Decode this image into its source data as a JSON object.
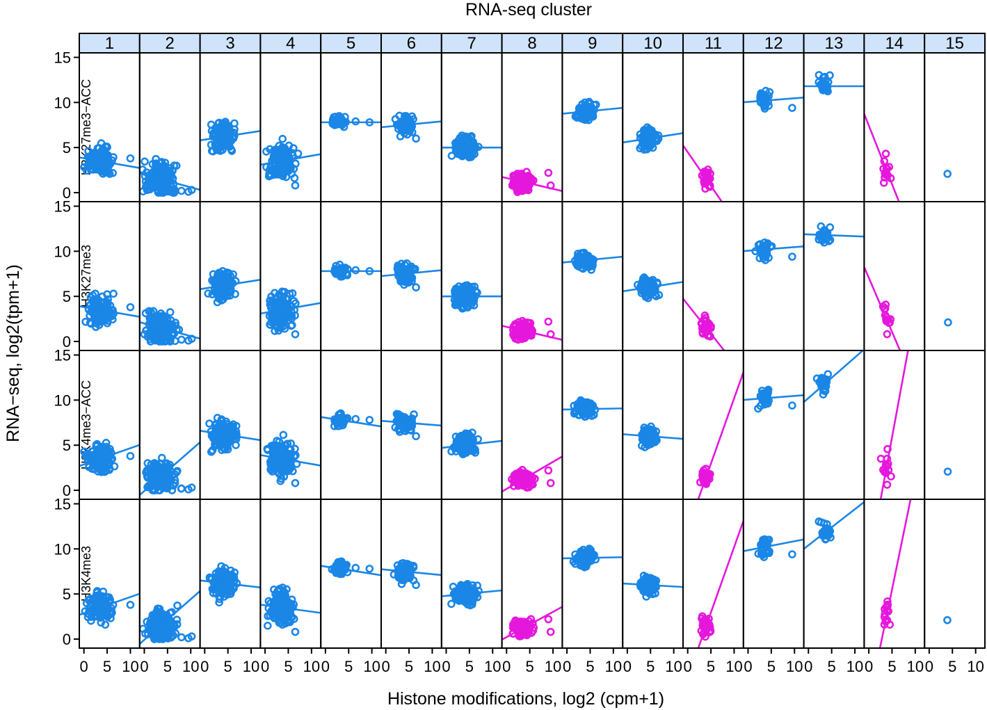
{
  "chart_data": {
    "type": "scatter",
    "title": "RNA-seq cluster",
    "xlabel": "Histone modifications, log2 (cpm+1)",
    "ylabel": "RNA−seq, log2(tpm+1)",
    "xlim": [
      -1,
      12
    ],
    "ylim": [
      -1,
      15.5
    ],
    "x_ticks": [
      "0",
      "5",
      "10"
    ],
    "y_ticks": [
      "0",
      "5",
      "10",
      "15"
    ],
    "columns": [
      "1",
      "2",
      "3",
      "4",
      "5",
      "6",
      "7",
      "8",
      "9",
      "10",
      "11",
      "12",
      "13",
      "14",
      "15"
    ],
    "rows": [
      "H3K27me3−ACC",
      "H3K27me3",
      "H3K4me3−ACC",
      "H3K4me3"
    ],
    "colors": {
      "blue": "#1a86e6",
      "magenta": "#e617dd",
      "strip": "#cfe3fb"
    },
    "column_colors": [
      "blue",
      "blue",
      "blue",
      "blue",
      "blue",
      "blue",
      "blue",
      "magenta",
      "blue",
      "blue",
      "magenta",
      "blue",
      "blue",
      "magenta",
      "blue"
    ],
    "clusters": [
      {
        "x_center": 3.5,
        "x_spread": 2.3,
        "y_center": 3.5,
        "y_spread": 1.4,
        "n": 130,
        "outliers": [
          [
            10,
            3.8
          ]
        ]
      },
      {
        "x_center": 3.5,
        "x_spread": 2.8,
        "y_center": 1.5,
        "y_spread": 1.5,
        "n": 160,
        "outliers": [
          [
            8,
            0.2
          ],
          [
            9.5,
            0.1
          ],
          [
            10.2,
            0.3
          ]
        ]
      },
      {
        "x_center": 4.0,
        "x_spread": 2.2,
        "y_center": 6.2,
        "y_spread": 1.4,
        "n": 130,
        "outliers": []
      },
      {
        "x_center": 3.5,
        "x_spread": 2.3,
        "y_center": 3.5,
        "y_spread": 1.7,
        "n": 150,
        "outliers": [
          [
            6.5,
            0.8
          ]
        ]
      },
      {
        "x_center": 3.0,
        "x_spread": 1.5,
        "y_center": 7.8,
        "y_spread": 0.6,
        "n": 45,
        "outliers": [
          [
            6.5,
            7.9
          ],
          [
            9.5,
            7.8
          ]
        ]
      },
      {
        "x_center": 4.0,
        "x_spread": 1.6,
        "y_center": 7.5,
        "y_spread": 0.9,
        "n": 80,
        "outliers": [
          [
            6.5,
            6.0
          ]
        ]
      },
      {
        "x_center": 4.0,
        "x_spread": 2.0,
        "y_center": 5.0,
        "y_spread": 1.0,
        "n": 140,
        "outliers": []
      },
      {
        "x_center": 3.5,
        "x_spread": 1.8,
        "y_center": 1.2,
        "y_spread": 0.8,
        "n": 110,
        "outliers": [
          [
            9,
            2.2
          ],
          [
            9.5,
            0.8
          ]
        ]
      },
      {
        "x_center": 4.0,
        "x_spread": 1.8,
        "y_center": 9.0,
        "y_spread": 0.8,
        "n": 90,
        "outliers": []
      },
      {
        "x_center": 4.5,
        "x_spread": 1.5,
        "y_center": 6.0,
        "y_spread": 0.9,
        "n": 90,
        "outliers": []
      },
      {
        "x_center": 4.0,
        "x_spread": 1.0,
        "y_center": 1.5,
        "y_spread": 1.0,
        "n": 35,
        "outliers": []
      },
      {
        "x_center": 3.5,
        "x_spread": 1.2,
        "y_center": 10.2,
        "y_spread": 0.9,
        "n": 30,
        "outliers": [
          [
            9.5,
            9.4
          ]
        ]
      },
      {
        "x_center": 3.5,
        "x_spread": 1.2,
        "y_center": 11.8,
        "y_spread": 1.0,
        "n": 25,
        "outliers": []
      },
      {
        "x_center": 3.8,
        "x_spread": 0.8,
        "y_center": 2.5,
        "y_spread": 1.5,
        "n": 14,
        "outliers": []
      },
      {
        "x_center": 4.0,
        "x_spread": 0.1,
        "y_center": 2.1,
        "y_spread": 0.05,
        "n": 1,
        "outliers": []
      }
    ],
    "fit_slopes": [
      [
        -0.09,
        -0.14,
        0.08,
        0.09,
        0.0,
        0.05,
        0.0,
        -0.12,
        0.05,
        0.08,
        -0.75,
        0.04,
        0.0,
        -1.3,
        0.0
      ],
      [
        -0.09,
        -0.14,
        0.08,
        0.09,
        0.0,
        0.05,
        0.0,
        -0.12,
        0.05,
        0.08,
        -0.65,
        0.04,
        -0.02,
        -1.2,
        0.0
      ],
      [
        0.18,
        0.45,
        -0.08,
        -0.09,
        -0.08,
        -0.04,
        0.06,
        0.3,
        0.01,
        -0.04,
        1.45,
        0.04,
        0.45,
        2.8,
        0.0
      ],
      [
        0.18,
        0.45,
        -0.06,
        -0.07,
        -0.08,
        -0.05,
        0.05,
        0.28,
        0.01,
        -0.03,
        1.45,
        0.1,
        0.4,
        2.5,
        0.0
      ]
    ]
  }
}
